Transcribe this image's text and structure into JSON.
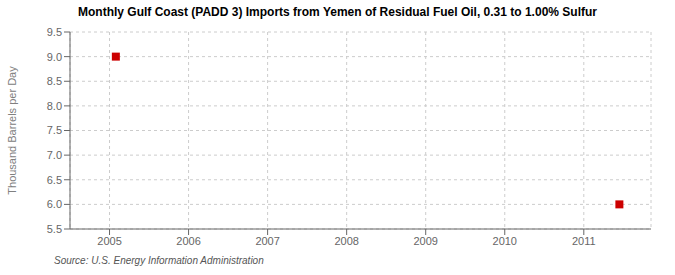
{
  "chart_data": {
    "type": "scatter",
    "title": "Monthly Gulf Coast (PADD 3) Imports from Yemen of Residual Fuel Oil, 0.31 to 1.00% Sulfur",
    "ylabel": "Thousand Barrels per Day",
    "annotations": [
      "Source: U.S. Energy Information Administration"
    ],
    "x": [
      2005.08,
      2011.45
    ],
    "values": [
      9.0,
      6.0
    ],
    "color": "#cc0000",
    "marker": "square",
    "xlim": [
      2004.5,
      2011.85
    ],
    "ylim": [
      5.5,
      9.5
    ],
    "xticks": [
      2005,
      2006,
      2007,
      2008,
      2009,
      2010,
      2011
    ],
    "yticks": [
      5.5,
      {
        "value": 6,
        "label": "6.0"
      },
      6.5,
      {
        "value": 7,
        "label": "7.0"
      },
      7.5,
      {
        "value": 8,
        "label": "8.0"
      },
      8.5,
      {
        "value": 9,
        "label": "9.0"
      },
      9.5
    ],
    "grid": true
  }
}
